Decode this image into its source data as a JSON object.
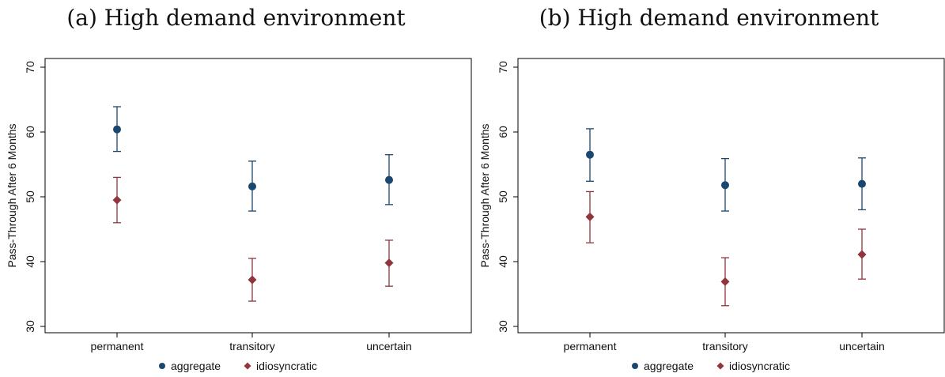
{
  "colors": {
    "aggregate": "#1a476f",
    "idiosyncratic": "#90353b"
  },
  "chart_data": [
    {
      "type": "scatter",
      "title": "(a) High demand environment",
      "xlabel": "",
      "ylabel": "Pass-Through After 6 Months",
      "ylim": [
        30,
        70
      ],
      "yticks": [
        30,
        40,
        50,
        60,
        70
      ],
      "categories": [
        "permanent",
        "transitory",
        "uncertain"
      ],
      "series": [
        {
          "name": "aggregate",
          "marker": "circle",
          "values": [
            60.4,
            51.6,
            52.6
          ],
          "lower": [
            57.0,
            47.8,
            48.8
          ],
          "upper": [
            63.9,
            55.5,
            56.5
          ]
        },
        {
          "name": "idiosyncratic",
          "marker": "diamond",
          "values": [
            49.5,
            37.2,
            39.8
          ],
          "lower": [
            46.0,
            33.9,
            36.2
          ],
          "upper": [
            53.0,
            40.5,
            43.3
          ]
        }
      ],
      "legend": [
        "aggregate",
        "idiosyncratic"
      ],
      "legend_position": "bottom"
    },
    {
      "type": "scatter",
      "title": "(b) High demand environment",
      "xlabel": "",
      "ylabel": "Pass-Through After 6 Months",
      "ylim": [
        30,
        70
      ],
      "yticks": [
        30,
        40,
        50,
        60,
        70
      ],
      "categories": [
        "permanent",
        "transitory",
        "uncertain"
      ],
      "series": [
        {
          "name": "aggregate",
          "marker": "circle",
          "values": [
            56.5,
            51.8,
            52.0
          ],
          "lower": [
            52.4,
            47.8,
            48.0
          ],
          "upper": [
            60.5,
            55.9,
            56.0
          ]
        },
        {
          "name": "idiosyncratic",
          "marker": "diamond",
          "values": [
            46.9,
            36.9,
            41.1
          ],
          "lower": [
            42.9,
            33.2,
            37.3
          ],
          "upper": [
            50.8,
            40.6,
            45.0
          ]
        }
      ],
      "legend": [
        "aggregate",
        "idiosyncratic"
      ],
      "legend_position": "bottom"
    }
  ]
}
